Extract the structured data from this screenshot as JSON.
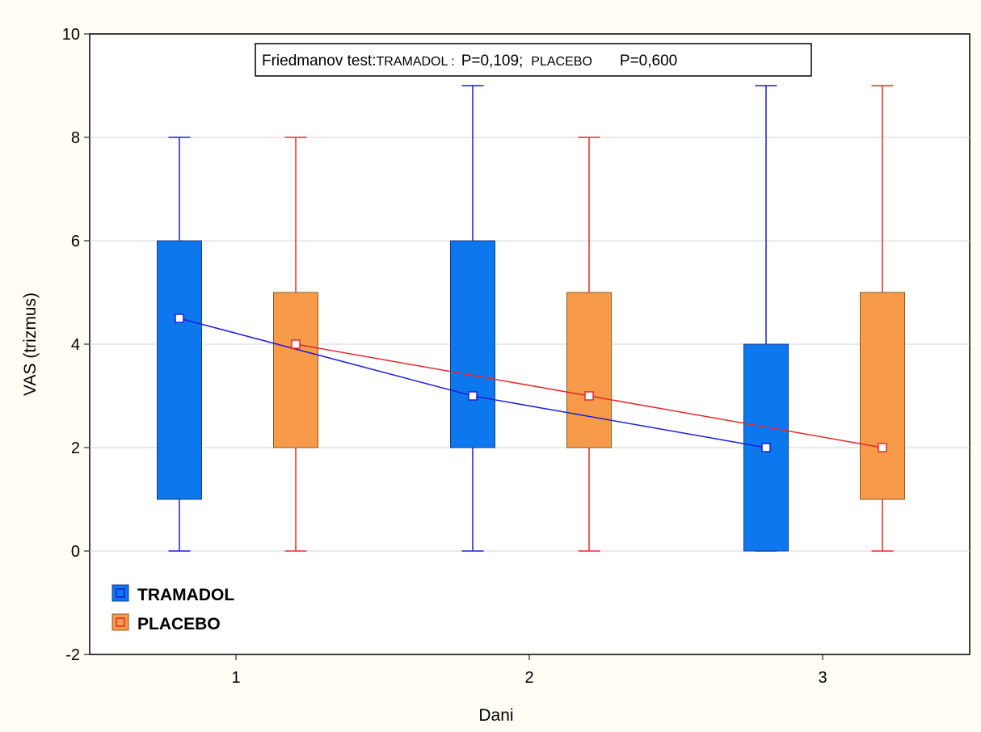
{
  "chart_data": {
    "type": "boxplot",
    "xlabel": "Dani",
    "ylabel": "VAS (trizmus)",
    "ylim": [
      -2,
      10
    ],
    "yticks": [
      "-2",
      "0",
      "2",
      "4",
      "6",
      "8",
      "10"
    ],
    "categories": [
      "1",
      "2",
      "3"
    ],
    "grid": true,
    "legend_position": "bottom-left",
    "annotation": {
      "prefix": "Friedmanov test:",
      "group1": "TRAMADOL :",
      "p1": "P=0,109;",
      "group2": "PLACEBO",
      "p2": "P=0,600"
    },
    "series": [
      {
        "name": "TRAMADOL",
        "box_color": "#0d77ee",
        "line_color": "#1d1dd9",
        "median": [
          4.5,
          3,
          2
        ],
        "q1": [
          1,
          2,
          0
        ],
        "q3": [
          6,
          6,
          4
        ],
        "min": [
          0,
          0,
          0
        ],
        "max": [
          8,
          9,
          9
        ]
      },
      {
        "name": "PLACEBO",
        "box_color": "#f79a4a",
        "line_color": "#e5282a",
        "median": [
          4,
          3,
          2
        ],
        "q1": [
          2,
          2,
          1
        ],
        "q3": [
          5,
          5,
          5
        ],
        "min": [
          0,
          0,
          0
        ],
        "max": [
          8,
          8,
          9
        ]
      }
    ]
  }
}
